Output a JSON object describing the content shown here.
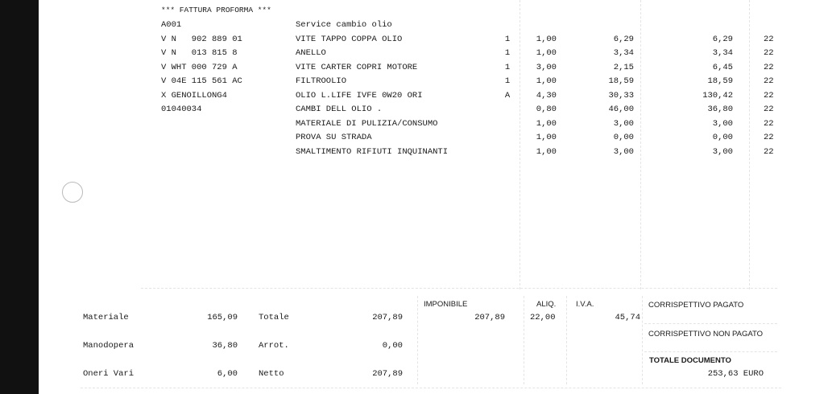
{
  "header": {
    "title": "*** FATTURA PROFORMA ***"
  },
  "items": [
    {
      "code": "A001",
      "desc": "Service cambio olio"
    },
    {
      "code": "V N   902 889 01",
      "desc": "VITE TAPPO COPPA OLIO",
      "flag": "1",
      "qty": "1,00",
      "price": "6,29",
      "total": "6,29",
      "vat": "22"
    },
    {
      "code": "V N   013 815 8",
      "desc": "ANELLO",
      "flag": "1",
      "qty": "1,00",
      "price": "3,34",
      "total": "3,34",
      "vat": "22"
    },
    {
      "code": "V WHT 000 729 A",
      "desc": "VITE CARTER COPRI MOTORE",
      "flag": "1",
      "qty": "3,00",
      "price": "2,15",
      "total": "6,45",
      "vat": "22"
    },
    {
      "code": "V 04E 115 561 AC",
      "desc": "FILTROOLIO",
      "flag": "1",
      "qty": "1,00",
      "price": "18,59",
      "total": "18,59",
      "vat": "22"
    },
    {
      "code": "X GENOILLONG4",
      "desc": "OLIO L.LIFE IVFE 0W20 ORI",
      "flag": "A",
      "qty": "4,30",
      "price": "30,33",
      "total": "130,42",
      "vat": "22"
    },
    {
      "code": "01040034",
      "desc": "CAMBI DELL OLIO .",
      "qty": "0,80",
      "price": "46,00",
      "total": "36,80",
      "vat": "22"
    },
    {
      "desc": "MATERIALE DI PULIZIA/CONSUMO",
      "qty": "1,00",
      "price": "3,00",
      "total": "3,00",
      "vat": "22"
    },
    {
      "desc": "PROVA SU STRADA",
      "qty": "1,00",
      "price": "0,00",
      "total": "0,00",
      "vat": "22"
    },
    {
      "desc": "SMALTIMENTO RIFIUTI INQUINANTI",
      "qty": "1,00",
      "price": "3,00",
      "total": "3,00",
      "vat": "22"
    }
  ],
  "summary": {
    "left": [
      {
        "label": "Materiale",
        "value": "165,09"
      },
      {
        "label": "Manodopera",
        "value": "36,80"
      },
      {
        "label": "Oneri Vari",
        "value": "6,00"
      }
    ],
    "middle": [
      {
        "label": "Totale",
        "value": "207,89"
      },
      {
        "label": "Arrot.",
        "value": "0,00"
      },
      {
        "label": "Netto",
        "value": "207,89"
      }
    ],
    "taxable": {
      "label": "IMPONIBILE",
      "value": "207,89"
    },
    "rate": {
      "label": "ALIQ.",
      "value": "22,00"
    },
    "vat": {
      "label": "I.V.A.",
      "value": "45,74"
    },
    "paid": "CORRISPETTIVO PAGATO",
    "unpaid": "CORRISPETTIVO NON PAGATO",
    "total_label": "TOTALE DOCUMENTO",
    "total_value": "253,63 EURO"
  }
}
